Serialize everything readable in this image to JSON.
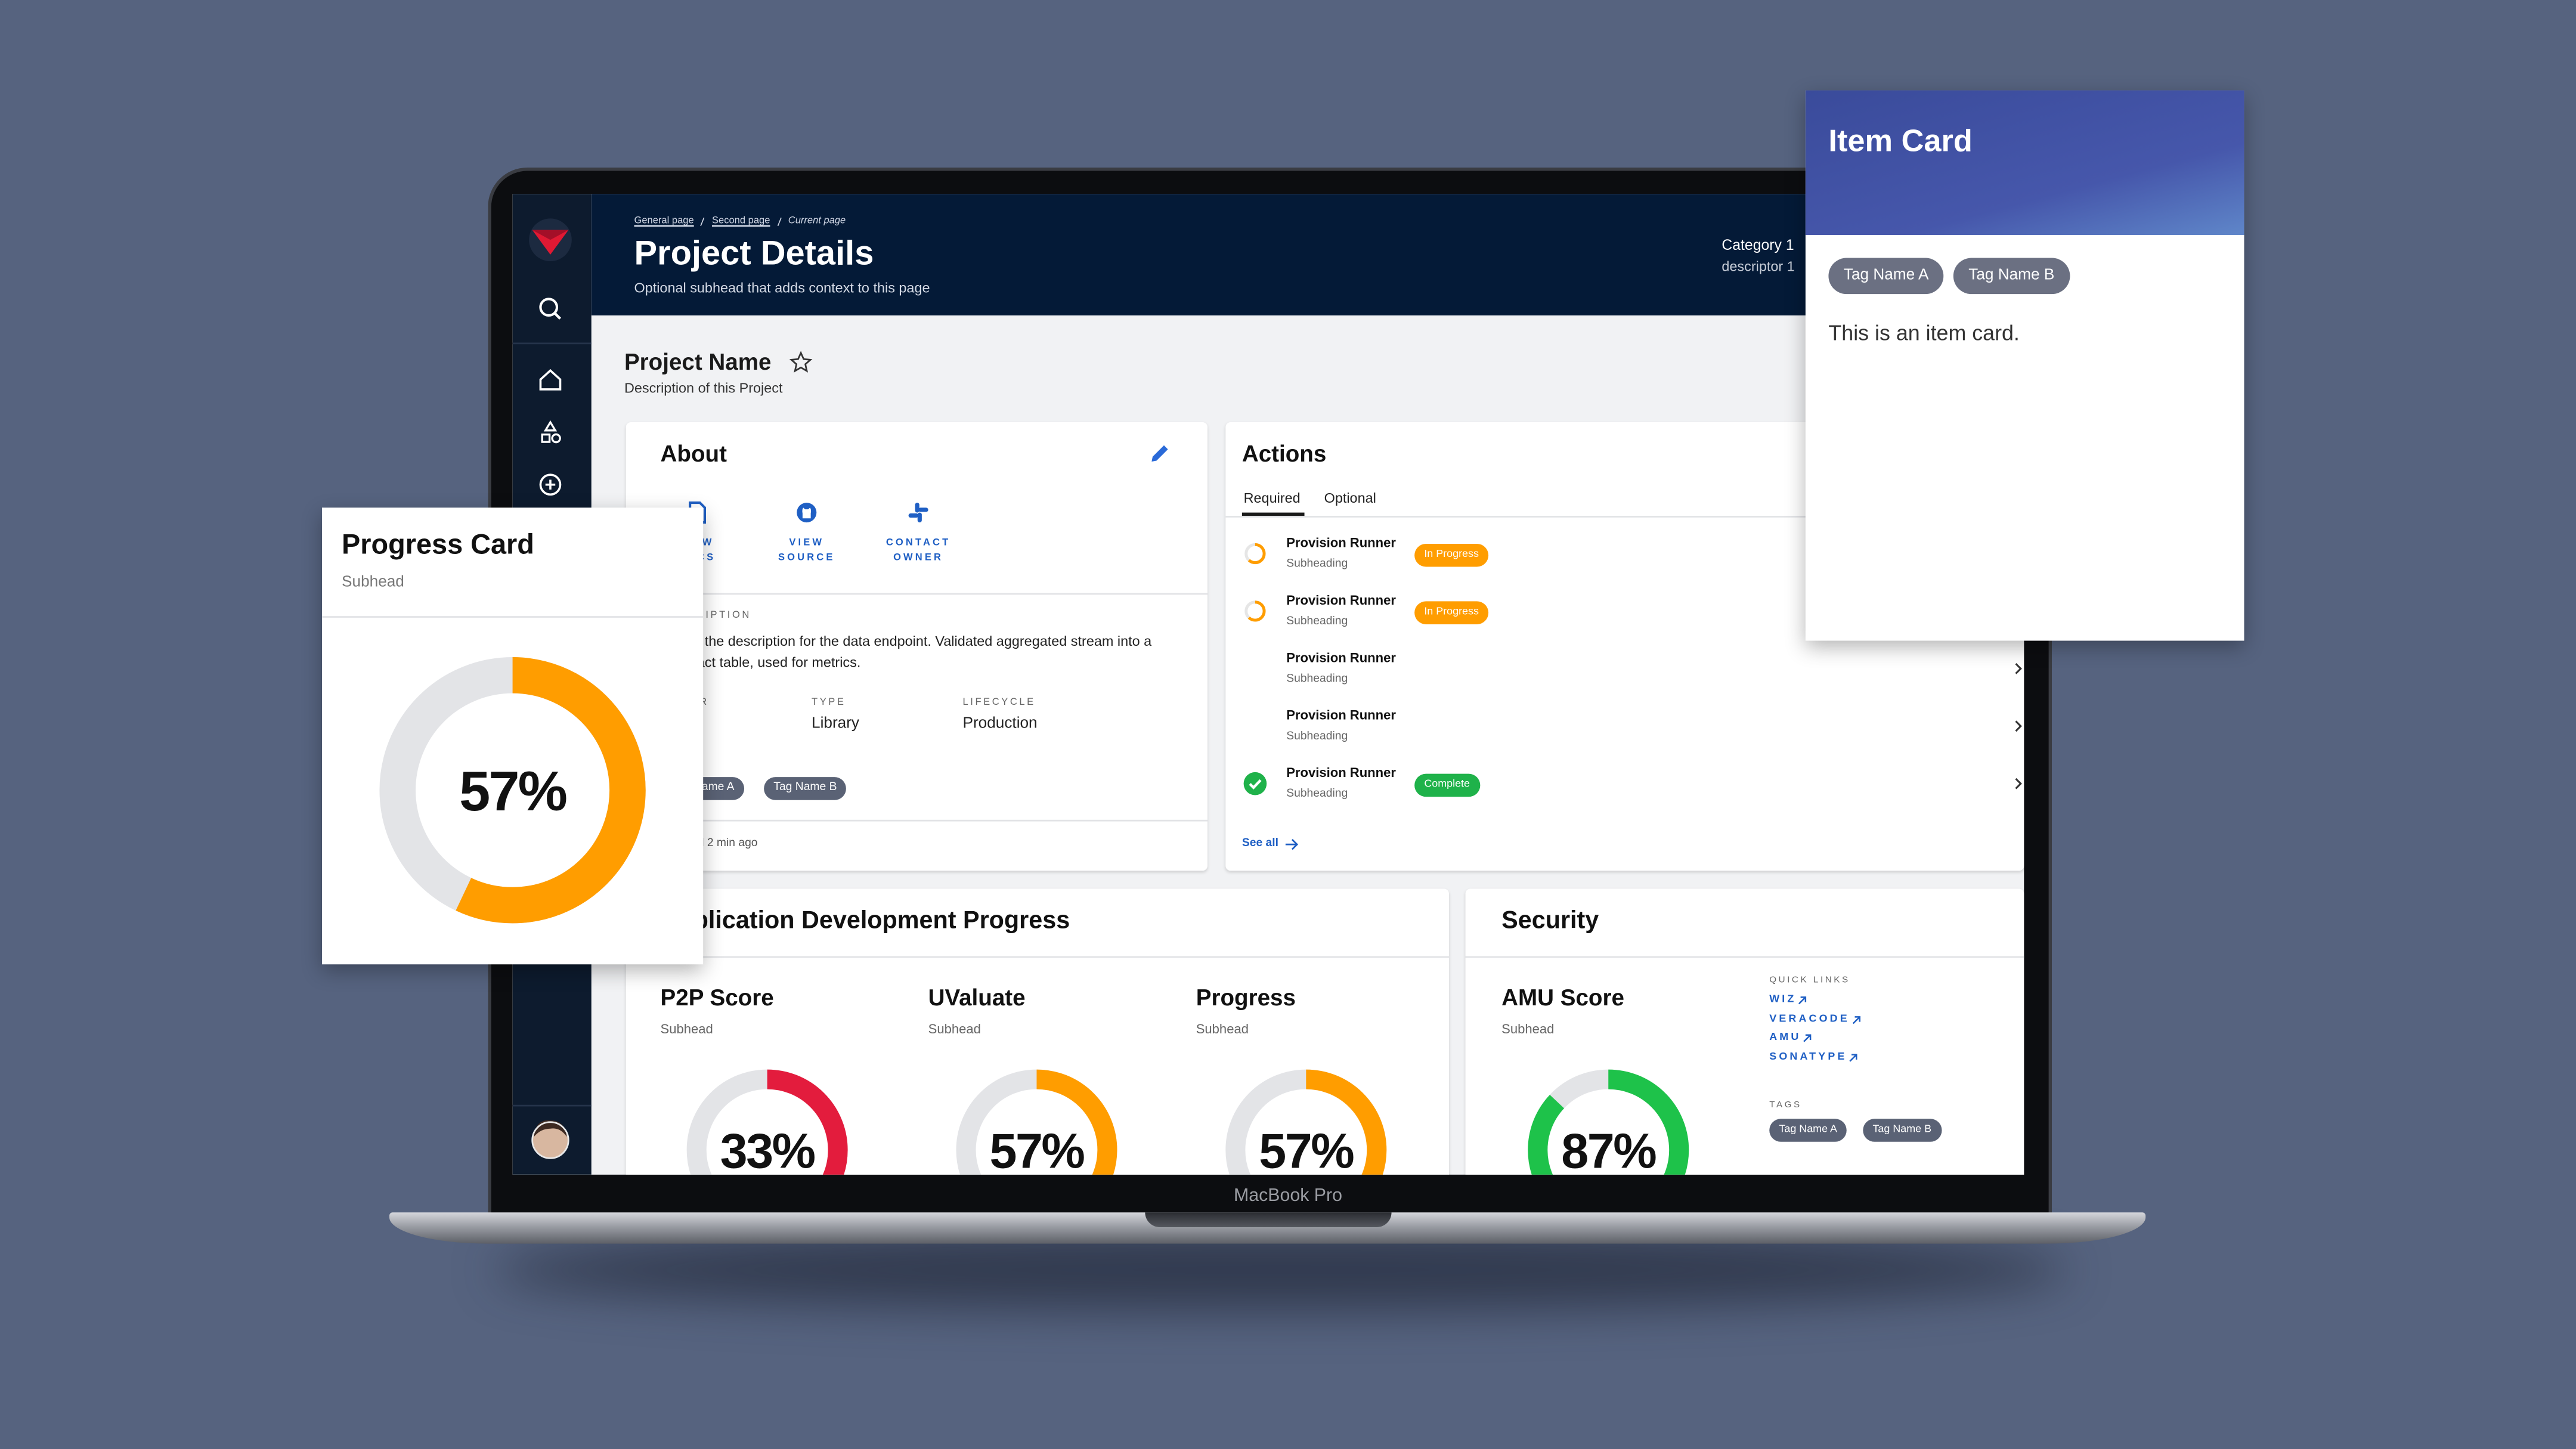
{
  "header": {
    "breadcrumbs": [
      "General page",
      "Second page",
      "Current page"
    ],
    "title": "Project Details",
    "subhead": "Optional subhead that adds context to this page",
    "category": "Category 1",
    "descriptor": "descriptor 1"
  },
  "project": {
    "name": "Project Name",
    "description": "Description of this Project"
  },
  "about": {
    "title": "About",
    "links": [
      "VIEW DOCS",
      "VIEW SOURCE",
      "CONTACT OWNER"
    ],
    "description_label": "DESCRIPTION",
    "description": "This is the description for the data endpoint. Validated aggregated stream into a daily fact table, used for metrics.",
    "fields": [
      {
        "label": "OWNER"
      },
      {
        "label": "TYPE",
        "value": "Library"
      },
      {
        "label": "LIFECYCLE",
        "value": "Production"
      }
    ],
    "tags": [
      "Tag Name A",
      "Tag Name B"
    ],
    "updated": "Updated 2 min ago"
  },
  "actions": {
    "title": "Actions",
    "tabs": [
      "Required",
      "Optional"
    ],
    "rows": [
      {
        "title": "Provision Runner",
        "subheading": "Subheading",
        "status": "In Progress",
        "status_color": "#ff9d00"
      },
      {
        "title": "Provision Runner",
        "subheading": "Subheading",
        "status": "In Progress",
        "status_color": "#ff9d00"
      },
      {
        "title": "Provision Runner",
        "subheading": "Subheading"
      },
      {
        "title": "Provision Runner",
        "subheading": "Subheading"
      },
      {
        "title": "Provision Runner",
        "subheading": "Subheading",
        "status": "Complete",
        "status_color": "#1fb24a"
      }
    ],
    "see_all": "See all"
  },
  "app_dev": {
    "title": "Application Development Progress",
    "scores": [
      {
        "title": "P2P Score",
        "subhead": "Subhead",
        "value": 33,
        "label": "33%",
        "color": "#e31c3d"
      },
      {
        "title": "UValuate",
        "subhead": "Subhead",
        "value": 57,
        "label": "57%",
        "color": "#ff9d00"
      },
      {
        "title": "Progress",
        "subhead": "Subhead",
        "value": 57,
        "label": "57%",
        "color": "#ff9d00"
      }
    ]
  },
  "security": {
    "title": "Security",
    "score": {
      "title": "AMU Score",
      "subhead": "Subhead",
      "value": 87,
      "label": "87%",
      "color": "#1ec24a"
    },
    "quick_links_label": "QUICK LINKS",
    "quick_links": [
      "WIZ",
      "VERACODE",
      "AMU",
      "SONATYPE"
    ],
    "tags_label": "TAGS",
    "tags": [
      "Tag Name A",
      "Tag Name B"
    ]
  },
  "progress_card": {
    "title": "Progress Card",
    "subhead": "Subhead",
    "gauge": {
      "value": 57,
      "label": "57%",
      "color": "#ff9d00"
    }
  },
  "item_card": {
    "title": "Item Card",
    "tags": [
      "Tag Name A",
      "Tag Name B"
    ],
    "text": "This is an item card."
  },
  "laptop": {
    "label": "MacBook Pro"
  }
}
